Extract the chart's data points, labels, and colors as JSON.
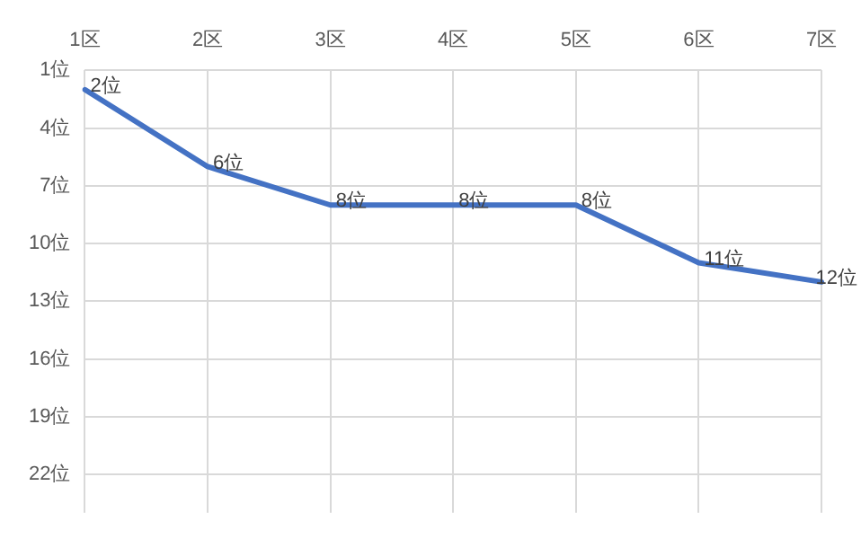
{
  "chart_data": {
    "type": "line",
    "categories": [
      "1区",
      "2区",
      "3区",
      "4区",
      "5区",
      "6区",
      "7区"
    ],
    "series": [
      {
        "color": "#4472c4",
        "values": [
          2,
          6,
          8,
          8,
          8,
          11,
          12
        ],
        "value_labels": [
          "2位",
          "6位",
          "8位",
          "8位",
          "8位",
          "11位",
          "12位"
        ]
      }
    ],
    "ylim": [
      24,
      1
    ],
    "yticks": [
      {
        "value": 1,
        "label": "1位"
      },
      {
        "value": 4,
        "label": "4位"
      },
      {
        "value": 7,
        "label": "7位"
      },
      {
        "value": 10,
        "label": "10位"
      },
      {
        "value": 13,
        "label": "13位"
      },
      {
        "value": 16,
        "label": "16位"
      },
      {
        "value": 19,
        "label": "19位"
      },
      {
        "value": 22,
        "label": "22位"
      }
    ],
    "grid": true,
    "legend": false,
    "marker": "none",
    "line_style": "solid"
  }
}
